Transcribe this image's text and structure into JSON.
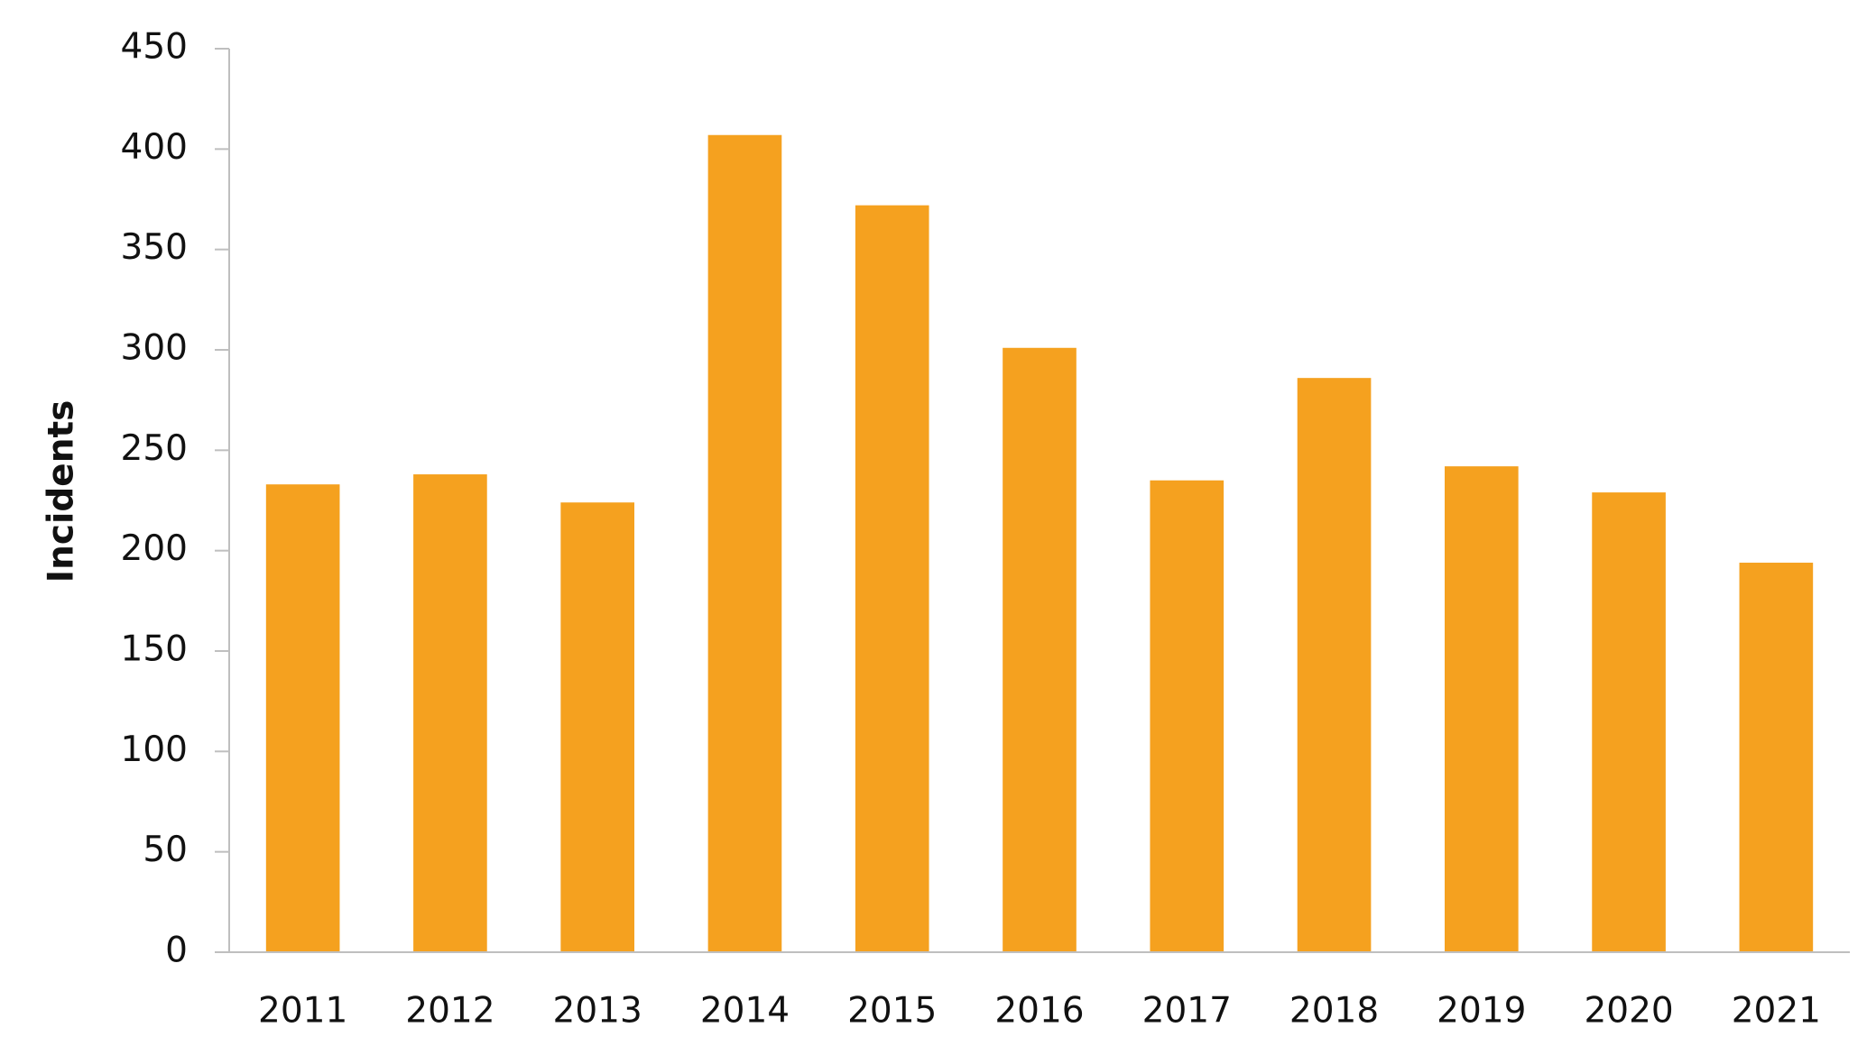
{
  "chart_data": {
    "type": "bar",
    "y_label": "Incidents",
    "categories": [
      "2011",
      "2012",
      "2013",
      "2014",
      "2015",
      "2016",
      "2017",
      "2018",
      "2019",
      "2020",
      "2021"
    ],
    "values": [
      233,
      238,
      224,
      407,
      372,
      301,
      235,
      286,
      242,
      229,
      194
    ],
    "color": "#f5a11f",
    "ylim": [
      0,
      450
    ],
    "yticks": [
      0,
      50,
      100,
      150,
      200,
      250,
      300,
      350,
      400,
      450
    ],
    "grid": false
  }
}
